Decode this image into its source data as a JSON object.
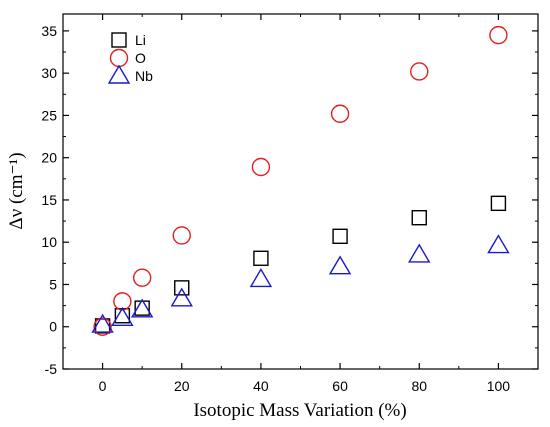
{
  "chart_data": {
    "type": "scatter",
    "xlabel": "Isotopic Mass Variation (%)",
    "ylabel": "Δν (cm⁻¹)",
    "xlim": [
      -10,
      110
    ],
    "ylim": [
      -5,
      37
    ],
    "xticks": [
      0,
      20,
      40,
      60,
      80,
      100
    ],
    "yticks": [
      -5,
      0,
      5,
      10,
      15,
      20,
      25,
      30,
      35
    ],
    "x_tick_labels": [
      "0",
      "20",
      "40",
      "60",
      "80",
      "100"
    ],
    "y_tick_labels": [
      "-5",
      "0",
      "5",
      "10",
      "15",
      "20",
      "25",
      "30",
      "35"
    ],
    "legend_position": "top-left",
    "grid": false,
    "series": [
      {
        "name": "Li",
        "marker": "square",
        "color": "#000000",
        "points": [
          [
            0,
            0.1
          ],
          [
            5,
            1.3
          ],
          [
            10,
            2.2
          ],
          [
            20,
            4.6
          ],
          [
            40,
            8.1
          ],
          [
            60,
            10.7
          ],
          [
            80,
            12.9
          ],
          [
            100,
            14.6
          ]
        ]
      },
      {
        "name": "O",
        "marker": "circle",
        "color": "#e02020",
        "points": [
          [
            0,
            0.0
          ],
          [
            5,
            3.0
          ],
          [
            10,
            5.8
          ],
          [
            20,
            10.8
          ],
          [
            40,
            18.9
          ],
          [
            60,
            25.2
          ],
          [
            80,
            30.2
          ],
          [
            100,
            34.5
          ]
        ]
      },
      {
        "name": "Nb",
        "marker": "triangle",
        "color": "#1a1ad0",
        "points": [
          [
            0,
            0.2
          ],
          [
            5,
            1.0
          ],
          [
            10,
            2.0
          ],
          [
            20,
            3.3
          ],
          [
            40,
            5.6
          ],
          [
            60,
            7.1
          ],
          [
            80,
            8.5
          ],
          [
            100,
            9.6
          ]
        ]
      }
    ]
  }
}
